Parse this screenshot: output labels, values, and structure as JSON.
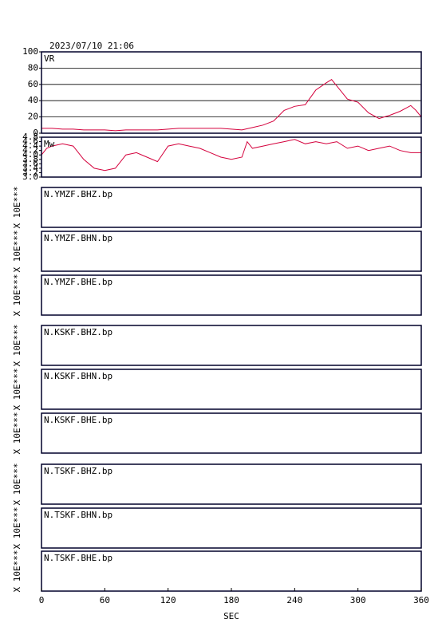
{
  "title": "2023/07/10 21:06",
  "chart_data": [
    {
      "type": "line",
      "label": "VR",
      "color": "#d4003c",
      "grid": true,
      "x": [
        0,
        10,
        20,
        30,
        40,
        50,
        60,
        70,
        80,
        90,
        100,
        110,
        120,
        130,
        140,
        150,
        160,
        170,
        180,
        190,
        200,
        210,
        220,
        230,
        240,
        250,
        260,
        270,
        275,
        280,
        290,
        300,
        310,
        320,
        330,
        340,
        350,
        355,
        360
      ],
      "values": [
        6,
        6,
        5,
        5,
        4,
        4,
        4,
        3,
        4,
        4,
        4,
        4,
        5,
        6,
        6,
        6,
        6,
        6,
        5,
        4,
        7,
        10,
        15,
        28,
        33,
        35,
        53,
        62,
        66,
        58,
        42,
        38,
        25,
        18,
        22,
        27,
        34,
        28,
        20
      ],
      "xlim": [
        0,
        360
      ],
      "ylim": [
        0,
        100
      ],
      "yticks": [
        0,
        20,
        40,
        60,
        80,
        100
      ]
    },
    {
      "type": "line",
      "label": "Mw",
      "color": "#d4003c",
      "grid": false,
      "x": [
        0,
        5,
        10,
        20,
        30,
        40,
        50,
        60,
        70,
        80,
        90,
        100,
        110,
        120,
        130,
        140,
        150,
        160,
        170,
        180,
        190,
        195,
        200,
        210,
        220,
        230,
        240,
        250,
        260,
        270,
        280,
        290,
        300,
        310,
        320,
        330,
        340,
        350,
        360
      ],
      "values": [
        4.0,
        4.3,
        4.4,
        4.5,
        4.4,
        3.8,
        3.4,
        3.3,
        3.4,
        4.0,
        4.1,
        3.9,
        3.7,
        4.4,
        4.5,
        4.4,
        4.3,
        4.1,
        3.9,
        3.8,
        3.9,
        4.6,
        4.3,
        4.4,
        4.5,
        4.6,
        4.7,
        4.5,
        4.6,
        4.5,
        4.6,
        4.3,
        4.4,
        4.2,
        4.3,
        4.4,
        4.2,
        4.1,
        4.1
      ],
      "xlim": [
        0,
        360
      ],
      "ylim": [
        3,
        4.8
      ],
      "yticks": [
        {
          "value": 3,
          "label": "3.0"
        },
        {
          "value": 3.2,
          "label": "3.2"
        },
        {
          "value": 3.4,
          "label": "3.4"
        },
        {
          "value": 3.6,
          "label": "3.6"
        },
        {
          "value": 3.8,
          "label": "3.8"
        },
        {
          "value": 4,
          "label": "4.0"
        },
        {
          "value": 4.2,
          "label": "4.2"
        },
        {
          "value": 4.4,
          "label": "4.4"
        },
        {
          "value": 4.6,
          "label": "4.6"
        },
        {
          "value": 4.8,
          "label": "4.8"
        }
      ]
    }
  ],
  "traces": [
    {
      "name": "N.YMZF.BHZ.bp",
      "scale": "X 10E***"
    },
    {
      "name": "N.YMZF.BHN.bp",
      "scale": "X 10E***"
    },
    {
      "name": "N.YMZF.BHE.bp",
      "scale": "X 10E***"
    },
    {
      "name": "N.KSKF.BHZ.bp",
      "scale": "X 10E***"
    },
    {
      "name": "N.KSKF.BHN.bp",
      "scale": "X 10E***"
    },
    {
      "name": "N.KSKF.BHE.bp",
      "scale": "X 10E***"
    },
    {
      "name": "N.TSKF.BHZ.bp",
      "scale": "X 10E***"
    },
    {
      "name": "N.TSKF.BHN.bp",
      "scale": "X 10E***"
    },
    {
      "name": "N.TSKF.BHE.bp",
      "scale": "X 10E***"
    }
  ],
  "x_axis": {
    "label": "SEC",
    "xlim": [
      0,
      360
    ],
    "xticks": [
      0,
      60,
      120,
      180,
      240,
      300,
      360
    ]
  }
}
